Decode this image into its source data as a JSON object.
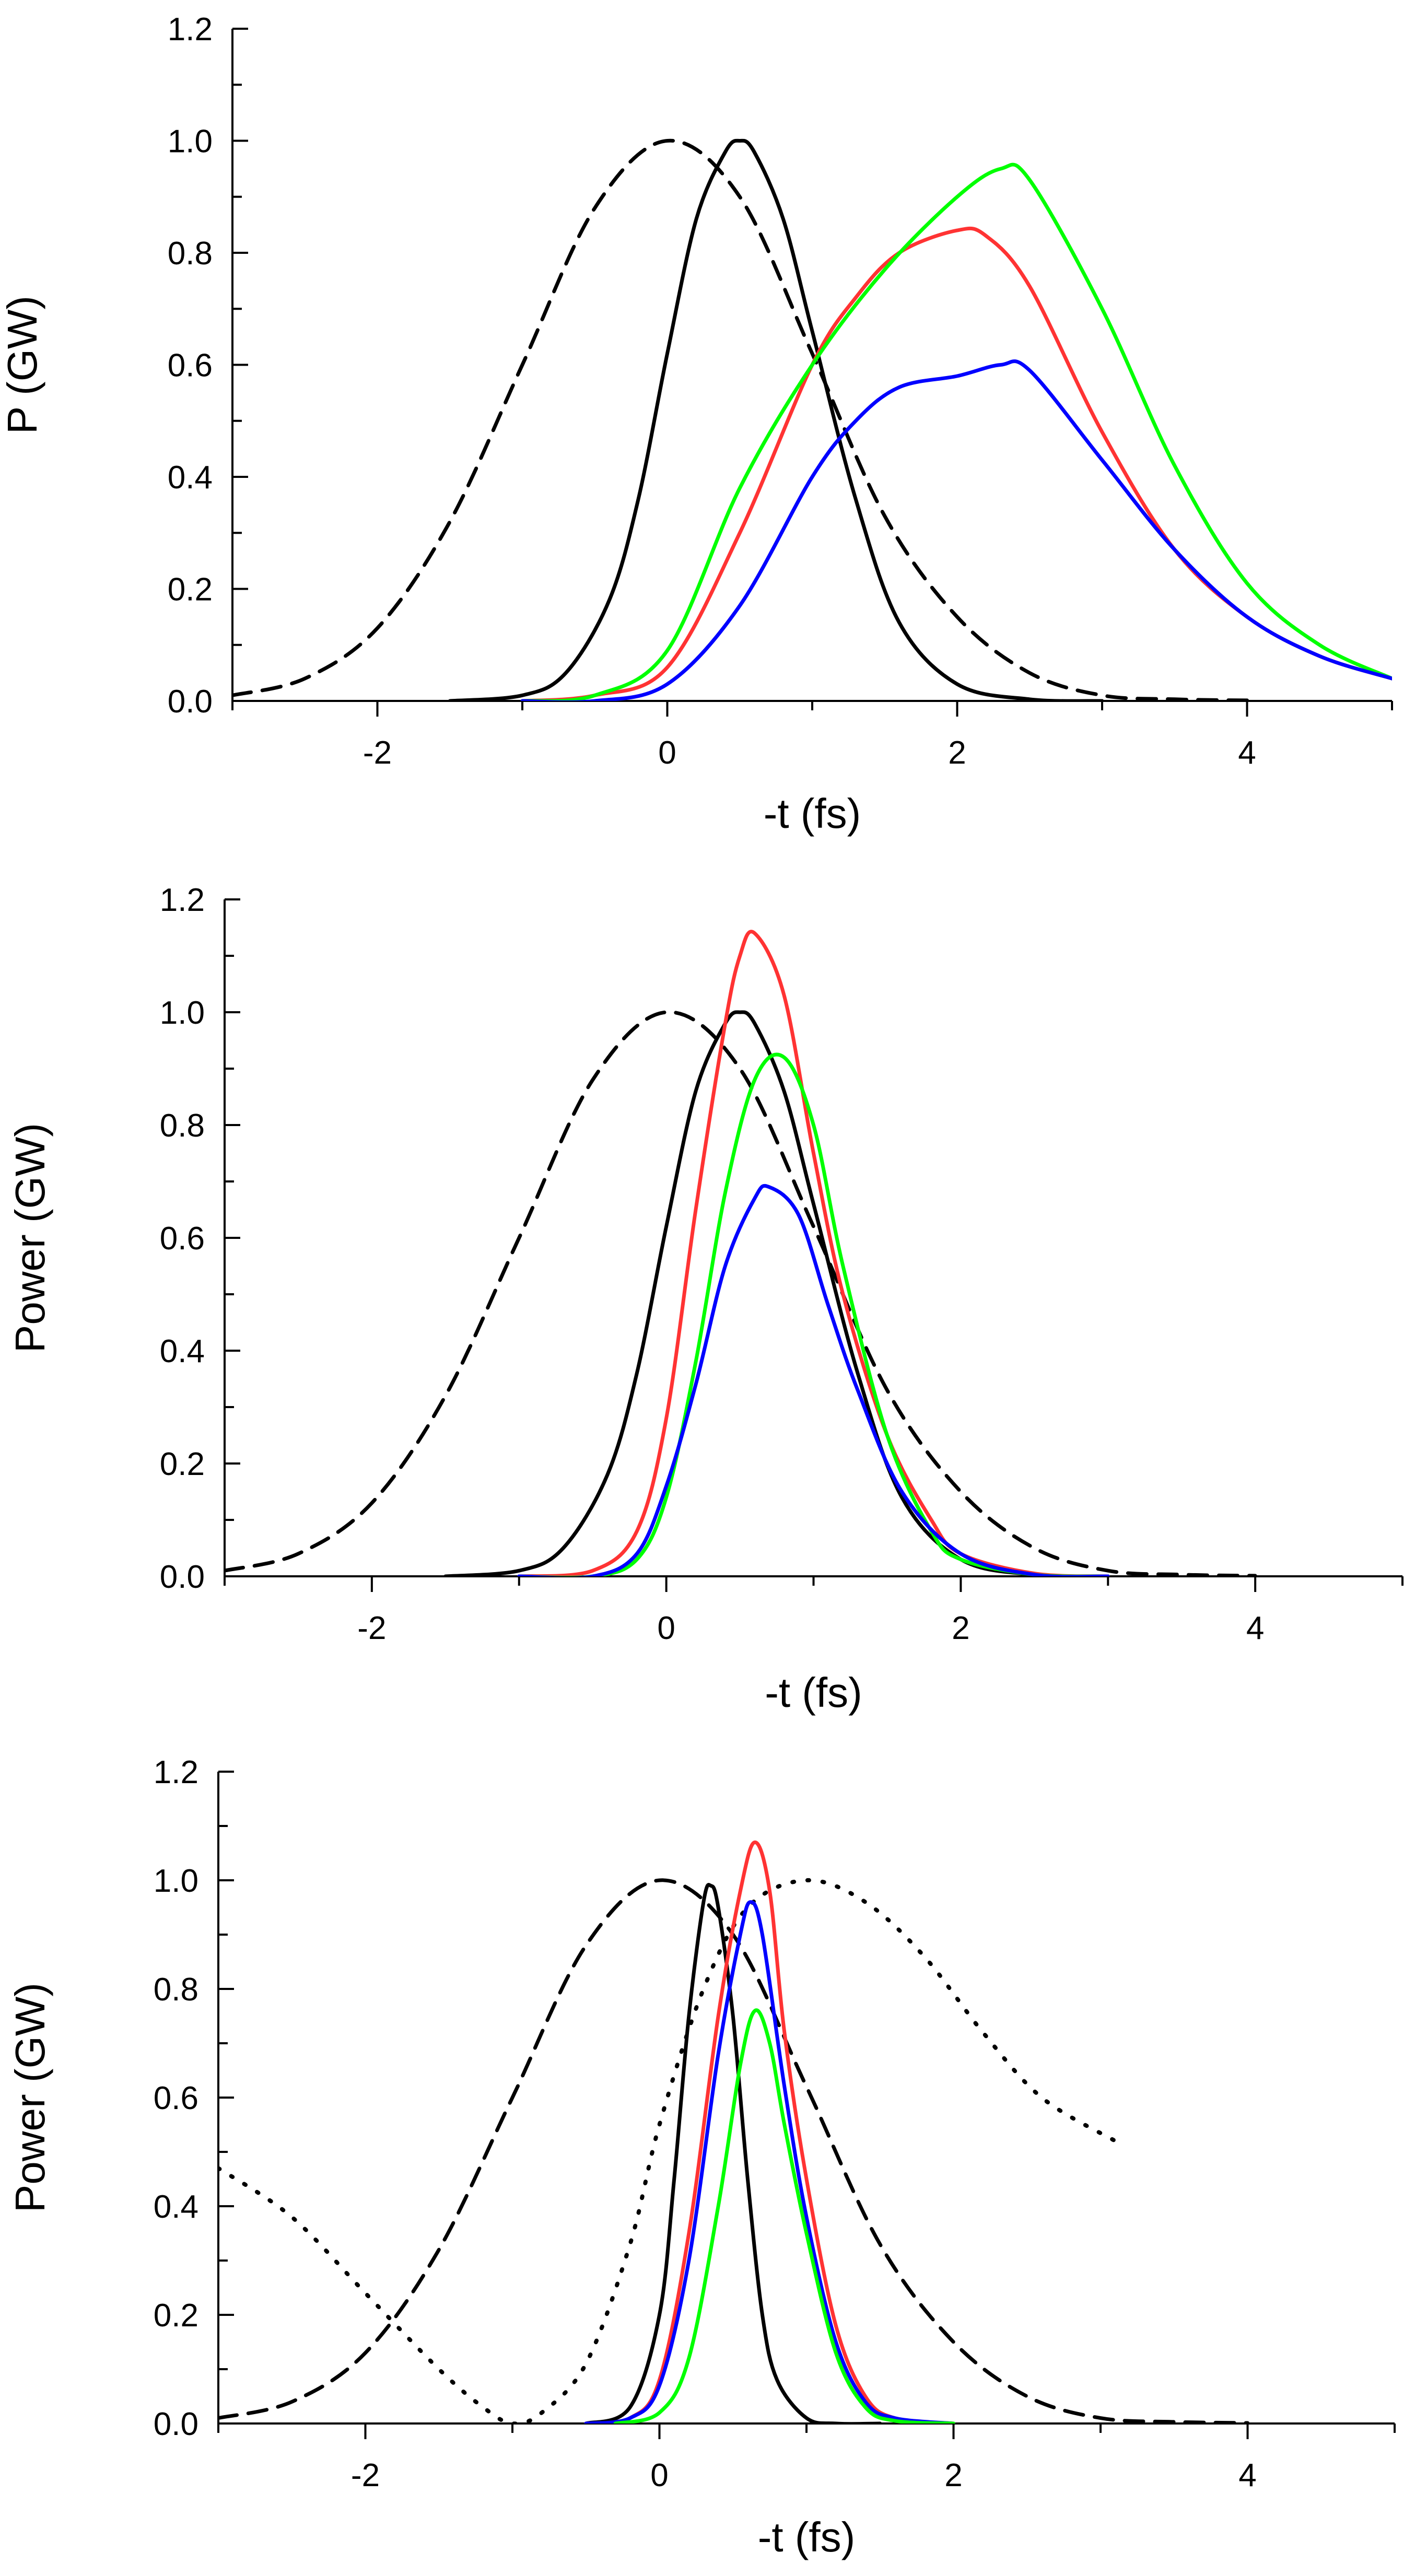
{
  "chart_data": [
    {
      "type": "line",
      "title": "",
      "xlabel": "-t (fs)",
      "ylabel": "P (GW)",
      "xlim": [
        -3,
        5
      ],
      "ylim": [
        0,
        1.2
      ],
      "xticks": [
        -2,
        0,
        2,
        4
      ],
      "yticks": [
        0.0,
        0.2,
        0.4,
        0.6,
        0.8,
        1.0,
        1.2
      ],
      "grid": false,
      "series": [
        {
          "color": "#000000",
          "style": "dashed",
          "x": [
            -3,
            -2.5,
            -2,
            -1.5,
            -1,
            -0.5,
            0,
            0.5,
            1,
            1.5,
            2,
            2.5,
            3,
            3.5,
            4
          ],
          "y": [
            0.01,
            0.04,
            0.13,
            0.32,
            0.6,
            0.88,
            1.0,
            0.9,
            0.62,
            0.33,
            0.15,
            0.05,
            0.01,
            0.003,
            0.001
          ]
        },
        {
          "color": "#000000",
          "style": "solid",
          "x": [
            -1.5,
            -1,
            -0.7,
            -0.4,
            -0.2,
            0,
            0.2,
            0.4,
            0.5,
            0.6,
            0.8,
            1,
            1.3,
            1.6,
            2,
            2.5,
            3
          ],
          "y": [
            0.0,
            0.01,
            0.05,
            0.18,
            0.36,
            0.62,
            0.86,
            0.98,
            1.0,
            0.98,
            0.86,
            0.66,
            0.36,
            0.14,
            0.03,
            0.003,
            0.0
          ]
        },
        {
          "color": "#ff3333",
          "style": "solid",
          "x": [
            -1,
            -0.5,
            0,
            0.5,
            1,
            1.3,
            1.6,
            2,
            2.2,
            2.5,
            3,
            3.5,
            4,
            4.5,
            5
          ],
          "y": [
            0.0,
            0.01,
            0.06,
            0.3,
            0.6,
            0.72,
            0.8,
            0.84,
            0.83,
            0.74,
            0.48,
            0.27,
            0.15,
            0.08,
            0.04
          ]
        },
        {
          "color": "#00ff00",
          "style": "solid",
          "x": [
            -1,
            -0.5,
            0,
            0.5,
            1,
            1.5,
            2,
            2.3,
            2.5,
            3,
            3.5,
            4,
            4.5,
            5
          ],
          "y": [
            0.0,
            0.01,
            0.09,
            0.38,
            0.6,
            0.77,
            0.9,
            0.95,
            0.93,
            0.7,
            0.42,
            0.21,
            0.1,
            0.04
          ]
        },
        {
          "color": "#0000ff",
          "style": "solid",
          "x": [
            -1,
            -0.5,
            0,
            0.5,
            1,
            1.3,
            1.6,
            2,
            2.3,
            2.5,
            3,
            3.5,
            4,
            4.5,
            5
          ],
          "y": [
            0.0,
            0.0,
            0.03,
            0.17,
            0.4,
            0.5,
            0.56,
            0.58,
            0.6,
            0.59,
            0.43,
            0.27,
            0.15,
            0.08,
            0.04
          ]
        }
      ]
    },
    {
      "type": "line",
      "title": "",
      "xlabel": "-t (fs)",
      "ylabel": "Power (GW)",
      "xlim": [
        -3,
        5
      ],
      "ylim": [
        0,
        1.2
      ],
      "xticks": [
        -2,
        0,
        2,
        4
      ],
      "yticks": [
        0.0,
        0.2,
        0.4,
        0.6,
        0.8,
        1.0,
        1.2
      ],
      "grid": false,
      "series": [
        {
          "color": "#000000",
          "style": "dashed",
          "x": [
            -3,
            -2.5,
            -2,
            -1.5,
            -1,
            -0.5,
            0,
            0.5,
            1,
            1.5,
            2,
            2.5,
            3,
            3.5,
            4
          ],
          "y": [
            0.01,
            0.04,
            0.13,
            0.32,
            0.6,
            0.88,
            1.0,
            0.9,
            0.62,
            0.33,
            0.15,
            0.05,
            0.01,
            0.003,
            0.001
          ]
        },
        {
          "color": "#000000",
          "style": "solid",
          "x": [
            -1.5,
            -1,
            -0.7,
            -0.4,
            -0.2,
            0,
            0.2,
            0.4,
            0.5,
            0.6,
            0.8,
            1,
            1.3,
            1.6,
            2,
            2.5,
            3
          ],
          "y": [
            0.0,
            0.01,
            0.05,
            0.18,
            0.36,
            0.62,
            0.86,
            0.98,
            1.0,
            0.98,
            0.86,
            0.66,
            0.36,
            0.14,
            0.03,
            0.003,
            0.0
          ]
        },
        {
          "color": "#ff3333",
          "style": "solid",
          "x": [
            -1,
            -0.5,
            -0.2,
            0,
            0.2,
            0.4,
            0.5,
            0.6,
            0.8,
            1,
            1.2,
            1.5,
            1.8,
            2,
            2.5,
            3
          ],
          "y": [
            0.0,
            0.01,
            0.08,
            0.28,
            0.65,
            0.98,
            1.1,
            1.14,
            1.03,
            0.75,
            0.5,
            0.25,
            0.1,
            0.04,
            0.005,
            0.0
          ]
        },
        {
          "color": "#00ff00",
          "style": "solid",
          "x": [
            -1,
            -0.5,
            -0.2,
            0,
            0.2,
            0.4,
            0.6,
            0.8,
            1,
            1.2,
            1.5,
            1.8,
            2,
            2.5,
            3
          ],
          "y": [
            0.0,
            0.0,
            0.03,
            0.14,
            0.38,
            0.68,
            0.88,
            0.92,
            0.8,
            0.55,
            0.25,
            0.08,
            0.03,
            0.003,
            0.0
          ]
        },
        {
          "color": "#0000ff",
          "style": "solid",
          "x": [
            -1,
            -0.5,
            -0.2,
            0,
            0.2,
            0.4,
            0.6,
            0.7,
            0.9,
            1.1,
            1.3,
            1.6,
            2,
            2.5,
            3
          ],
          "y": [
            0.0,
            0.0,
            0.04,
            0.16,
            0.34,
            0.55,
            0.67,
            0.69,
            0.64,
            0.48,
            0.33,
            0.15,
            0.04,
            0.003,
            0.0
          ]
        }
      ]
    },
    {
      "type": "line",
      "title": "",
      "xlabel": "-t (fs)",
      "ylabel": "Power (GW)",
      "xlim": [
        -3,
        5
      ],
      "ylim": [
        0,
        1.2
      ],
      "xticks": [
        -2,
        0,
        2,
        4
      ],
      "yticks": [
        0.0,
        0.2,
        0.4,
        0.6,
        0.8,
        1.0,
        1.2
      ],
      "grid": false,
      "series": [
        {
          "color": "#000000",
          "style": "dashed",
          "x": [
            -3,
            -2.5,
            -2,
            -1.5,
            -1,
            -0.5,
            0,
            0.5,
            1,
            1.5,
            2,
            2.5,
            3,
            3.5,
            4
          ],
          "y": [
            0.01,
            0.04,
            0.13,
            0.32,
            0.6,
            0.88,
            1.0,
            0.9,
            0.62,
            0.33,
            0.15,
            0.05,
            0.01,
            0.003,
            0.001
          ]
        },
        {
          "color": "#000000",
          "style": "dotted",
          "x": [
            -3,
            -2.5,
            -2,
            -1.5,
            -1.2,
            -1,
            -0.8,
            -0.5,
            -0.2,
            0,
            0.3,
            0.6,
            1,
            1.4,
            1.8,
            2.2,
            2.6,
            3.1
          ],
          "y": [
            0.47,
            0.38,
            0.24,
            0.1,
            0.03,
            0.0,
            0.02,
            0.11,
            0.33,
            0.55,
            0.8,
            0.95,
            1.0,
            0.96,
            0.86,
            0.72,
            0.6,
            0.52
          ]
        },
        {
          "color": "#000000",
          "style": "solid",
          "x": [
            -0.5,
            -0.2,
            0,
            0.1,
            0.2,
            0.3,
            0.35,
            0.4,
            0.5,
            0.6,
            0.7,
            0.8,
            1,
            1.2,
            1.5
          ],
          "y": [
            0.0,
            0.03,
            0.2,
            0.45,
            0.75,
            0.96,
            0.99,
            0.95,
            0.75,
            0.45,
            0.2,
            0.08,
            0.01,
            0.0,
            0.0
          ]
        },
        {
          "color": "#ff3333",
          "style": "solid",
          "x": [
            -0.5,
            -0.2,
            0,
            0.2,
            0.4,
            0.55,
            0.65,
            0.75,
            0.85,
            1,
            1.2,
            1.4,
            1.6,
            2
          ],
          "y": [
            0.0,
            0.01,
            0.08,
            0.35,
            0.75,
            0.98,
            1.07,
            0.98,
            0.72,
            0.45,
            0.18,
            0.05,
            0.01,
            0.0
          ]
        },
        {
          "color": "#0000ff",
          "style": "solid",
          "x": [
            -0.5,
            -0.2,
            0,
            0.2,
            0.4,
            0.55,
            0.62,
            0.7,
            0.85,
            1,
            1.2,
            1.4,
            1.6,
            2
          ],
          "y": [
            0.0,
            0.01,
            0.07,
            0.3,
            0.68,
            0.9,
            0.96,
            0.9,
            0.62,
            0.38,
            0.15,
            0.04,
            0.01,
            0.0
          ]
        },
        {
          "color": "#00ff00",
          "style": "solid",
          "x": [
            -0.3,
            0,
            0.2,
            0.4,
            0.55,
            0.65,
            0.75,
            0.85,
            1,
            1.2,
            1.4,
            1.6,
            2
          ],
          "y": [
            0.0,
            0.02,
            0.12,
            0.4,
            0.66,
            0.76,
            0.7,
            0.55,
            0.35,
            0.13,
            0.03,
            0.005,
            0.0
          ]
        }
      ]
    }
  ]
}
